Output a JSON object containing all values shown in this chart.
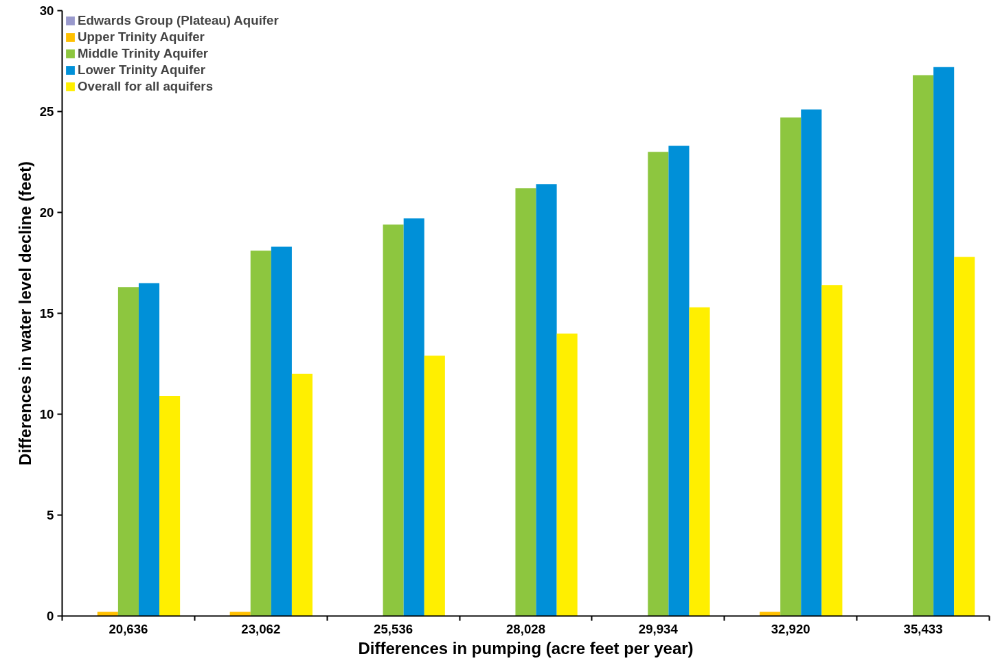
{
  "chart_data": {
    "type": "bar",
    "xlabel": "Differences in pumping (acre feet per year)",
    "ylabel": "Differences in water level decline (feet)",
    "categories": [
      "20,636",
      "23,062",
      "25,536",
      "28,028",
      "29,934",
      "32,920",
      "35,433"
    ],
    "series": [
      {
        "name": "Edwards Group (Plateau) Aquifer",
        "color": "#9999cc",
        "values": [
          0,
          0,
          0,
          0,
          0,
          0,
          0
        ]
      },
      {
        "name": "Upper Trinity Aquifer",
        "color": "#ffc000",
        "values": [
          0.2,
          0.2,
          null,
          null,
          null,
          0.2,
          null
        ]
      },
      {
        "name": "Middle Trinity Aquifer",
        "color": "#8dc63f",
        "values": [
          16.3,
          18.1,
          19.4,
          21.2,
          23.0,
          24.7,
          26.8
        ]
      },
      {
        "name": "Lower Trinity Aquifer",
        "color": "#0090d8",
        "values": [
          16.5,
          18.3,
          19.7,
          21.4,
          23.3,
          25.1,
          27.2
        ]
      },
      {
        "name": "Overall for all aquifers",
        "color": "#ffef00",
        "values": [
          10.9,
          12.0,
          12.9,
          14.0,
          15.3,
          16.4,
          17.8
        ]
      }
    ],
    "ylim": [
      0,
      30
    ],
    "yticks": [
      0,
      5,
      10,
      15,
      20,
      25,
      30
    ],
    "grid": false,
    "legend": "top left"
  }
}
